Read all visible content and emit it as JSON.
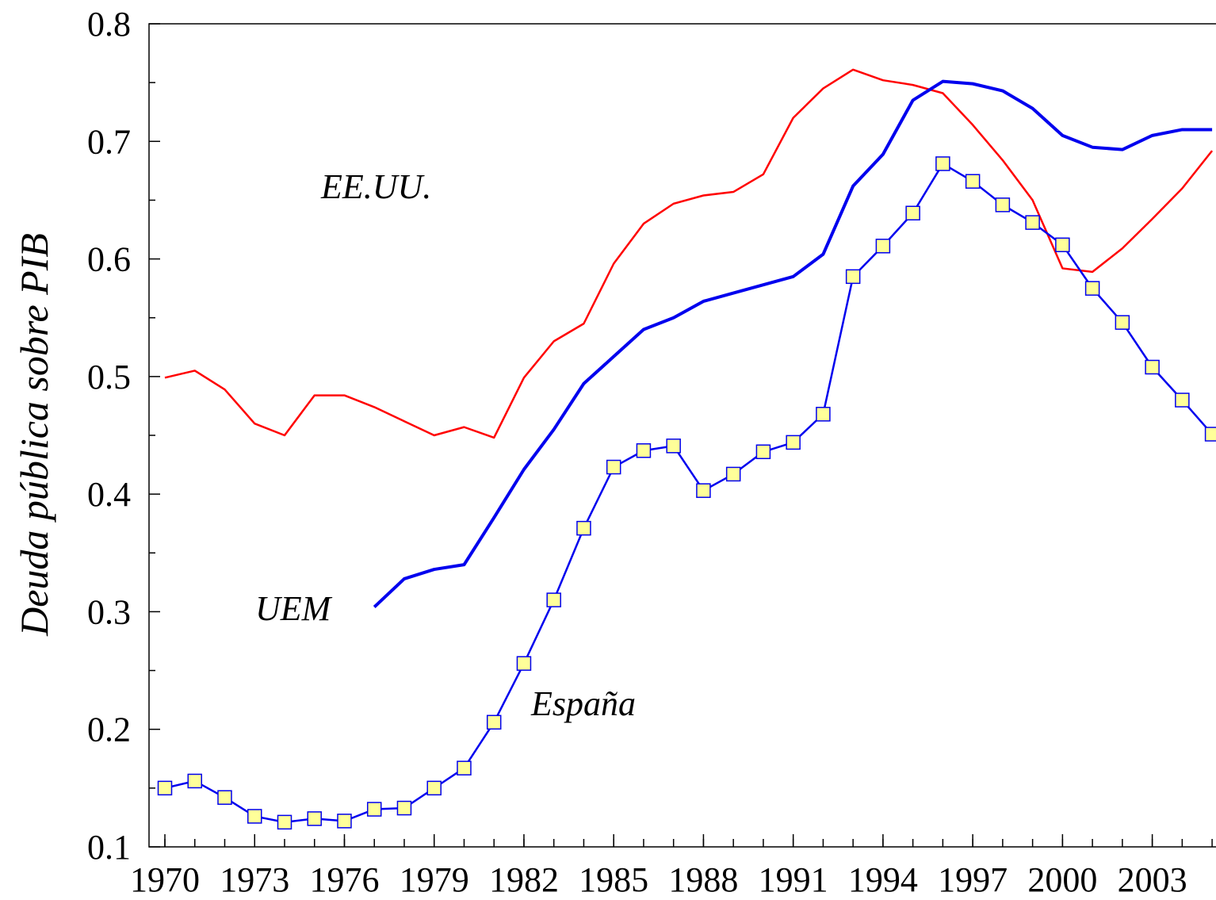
{
  "chart_data": {
    "type": "line",
    "y_label": "Deuda pública sobre PIB",
    "x": [
      1970,
      1971,
      1972,
      1973,
      1974,
      1975,
      1976,
      1977,
      1978,
      1979,
      1980,
      1981,
      1982,
      1983,
      1984,
      1985,
      1986,
      1987,
      1988,
      1989,
      1990,
      1991,
      1992,
      1993,
      1994,
      1995,
      1996,
      1997,
      1998,
      1999,
      2000,
      2001,
      2002,
      2003,
      2004,
      2005
    ],
    "series": [
      {
        "name": "EE.UU.",
        "color": "#ff0000",
        "width": 2.5,
        "values": [
          0.499,
          0.505,
          0.489,
          0.46,
          0.45,
          0.484,
          0.484,
          0.474,
          0.462,
          0.45,
          0.457,
          0.448,
          0.499,
          0.53,
          0.545,
          0.596,
          0.63,
          0.647,
          0.654,
          0.657,
          0.672,
          0.72,
          0.745,
          0.761,
          0.752,
          0.748,
          0.741,
          0.714,
          0.684,
          0.65,
          0.592,
          0.589,
          0.609,
          0.634,
          0.66,
          0.692
        ]
      },
      {
        "name": "UEM",
        "color": "#0000ee",
        "width": 4,
        "values": [
          null,
          null,
          null,
          null,
          null,
          null,
          null,
          0.304,
          0.328,
          0.336,
          0.34,
          0.38,
          0.421,
          0.455,
          0.494,
          0.517,
          0.54,
          0.55,
          0.564,
          0.571,
          0.578,
          0.585,
          0.604,
          0.662,
          0.689,
          0.735,
          0.751,
          0.749,
          0.743,
          0.728,
          0.705,
          0.695,
          0.693,
          0.705,
          0.71,
          0.71
        ]
      },
      {
        "name": "España",
        "color": "#0000ee",
        "width": 2.5,
        "marker": "square",
        "marker_color": "#ffff99",
        "values": [
          0.15,
          0.156,
          0.142,
          0.126,
          0.121,
          0.124,
          0.122,
          0.132,
          0.133,
          0.15,
          0.167,
          0.206,
          0.256,
          0.31,
          0.371,
          0.423,
          0.437,
          0.441,
          0.403,
          0.417,
          0.436,
          0.444,
          0.468,
          0.585,
          0.611,
          0.639,
          0.681,
          0.666,
          0.646,
          0.631,
          0.612,
          0.575,
          0.546,
          0.508,
          0.48,
          0.451
        ]
      }
    ],
    "xlim": [
      1969.47,
      2005.13
    ],
    "xticks": [
      1970,
      1973,
      1976,
      1979,
      1982,
      1985,
      1988,
      1991,
      1994,
      1997,
      2000,
      2003
    ],
    "ylim": [
      0.1,
      0.8
    ],
    "yticks": [
      0.1,
      0.2,
      0.3,
      0.4,
      0.5,
      0.6,
      0.7,
      0.8
    ],
    "yminor_ticks": [
      0.15,
      0.25,
      0.35,
      0.45,
      0.55,
      0.65,
      0.75
    ]
  }
}
